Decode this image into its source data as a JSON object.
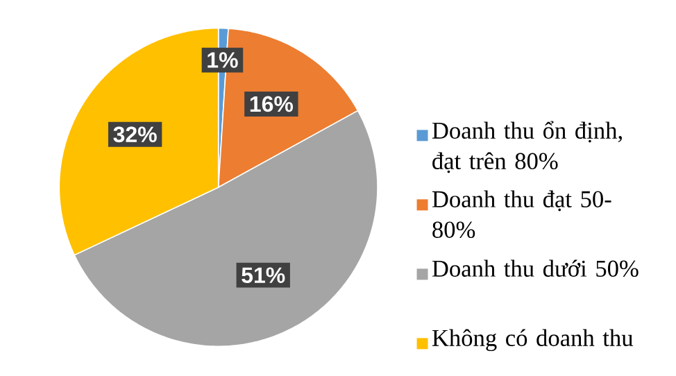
{
  "chart_data": {
    "type": "pie",
    "categories": [
      "Doanh thu ổn định, đạt trên 80%",
      "Doanh thu đạt 50-80%",
      "Doanh thu dưới 50%",
      "Không có doanh thu"
    ],
    "values": [
      1,
      16,
      51,
      32
    ],
    "colors": [
      "#5b9bd5",
      "#ed7d31",
      "#a5a5a5",
      "#ffc000"
    ],
    "value_labels": [
      "1%",
      "16%",
      "51%",
      "32%"
    ],
    "legend": "right"
  }
}
